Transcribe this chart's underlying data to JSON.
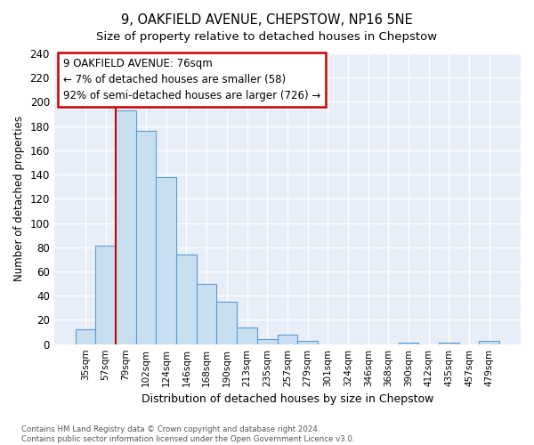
{
  "title": "9, OAKFIELD AVENUE, CHEPSTOW, NP16 5NE",
  "subtitle": "Size of property relative to detached houses in Chepstow",
  "xlabel": "Distribution of detached houses by size in Chepstow",
  "ylabel": "Number of detached properties",
  "bin_labels": [
    "35sqm",
    "57sqm",
    "79sqm",
    "102sqm",
    "124sqm",
    "146sqm",
    "168sqm",
    "190sqm",
    "213sqm",
    "235sqm",
    "257sqm",
    "279sqm",
    "301sqm",
    "324sqm",
    "346sqm",
    "368sqm",
    "390sqm",
    "412sqm",
    "435sqm",
    "457sqm",
    "479sqm"
  ],
  "bar_heights": [
    12,
    81,
    193,
    176,
    138,
    74,
    50,
    35,
    14,
    4,
    8,
    3,
    0,
    0,
    0,
    0,
    1,
    0,
    1,
    0,
    3
  ],
  "bar_color": "#c8dff0",
  "bar_edge_color": "#5b9bd5",
  "vline_color": "#cc0000",
  "ylim": [
    0,
    240
  ],
  "yticks": [
    0,
    20,
    40,
    60,
    80,
    100,
    120,
    140,
    160,
    180,
    200,
    220,
    240
  ],
  "annotation_title": "9 OAKFIELD AVENUE: 76sqm",
  "annotation_line1": "← 7% of detached houses are smaller (58)",
  "annotation_line2": "92% of semi-detached houses are larger (726) →",
  "footer_line1": "Contains HM Land Registry data © Crown copyright and database right 2024.",
  "footer_line2": "Contains public sector information licensed under the Open Government Licence v3.0.",
  "bg_color": "#ffffff",
  "plot_bg_color": "#e8eef8"
}
